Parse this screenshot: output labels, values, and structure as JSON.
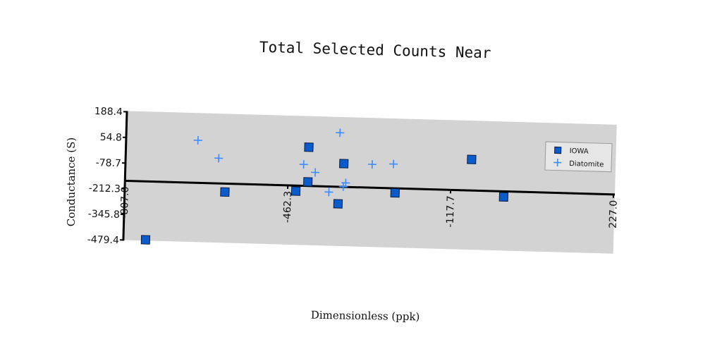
{
  "chart_data": {
    "type": "scatter",
    "title": "Total Selected Counts Near",
    "xlabel": "Dimensionless (ppk)",
    "ylabel": "Conductance (S)",
    "xlim": [
      -807.0,
      227.0
    ],
    "ylim": [
      -479.4,
      188.4
    ],
    "x_ticks": [
      "-807.0",
      "-462.3",
      "-117.7",
      "227.0"
    ],
    "y_ticks": [
      "188.4",
      "54.8",
      "-78.7",
      "-212.3",
      "-345.8",
      "-479.4"
    ],
    "grid": false,
    "legend": "top-right",
    "series": [
      {
        "name": "IOWA",
        "marker": "square",
        "color": "#0a5ccc",
        "points": [
          [
            -760,
            -475
          ],
          [
            -595,
            -215
          ],
          [
            -445,
            -200
          ],
          [
            -420,
            30
          ],
          [
            -420,
            -150
          ],
          [
            -355,
            -260
          ],
          [
            -345,
            -50
          ],
          [
            -235,
            -195
          ],
          [
            -75,
            -10
          ],
          [
            -5,
            -200
          ]
        ]
      },
      {
        "name": "Diatomite",
        "marker": "plus",
        "color": "#3d8bff",
        "points": [
          [
            -655,
            50
          ],
          [
            -610,
            -40
          ],
          [
            -430,
            -60
          ],
          [
            -405,
            -100
          ],
          [
            -355,
            110
          ],
          [
            -375,
            -200
          ],
          [
            -345,
            -170
          ],
          [
            -340,
            -150
          ],
          [
            -285,
            -50
          ],
          [
            -240,
            -45
          ]
        ]
      }
    ]
  }
}
